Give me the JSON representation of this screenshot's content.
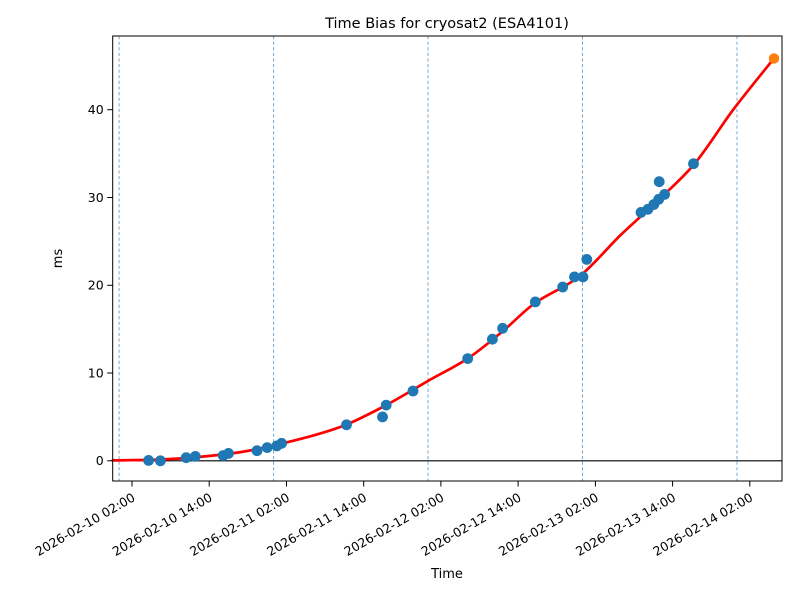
{
  "chart_data": {
    "type": "scatter",
    "title": "Time Bias for cryosat2 (ESA4101)",
    "xlabel": "Time",
    "ylabel": "ms",
    "x_range": [
      "2026-02-09 23:00",
      "2026-02-14 07:00"
    ],
    "y_range": [
      -2.3,
      48.4
    ],
    "y_ticks": [
      0,
      10,
      20,
      30,
      40
    ],
    "x_tick_labels": [
      "2026-02-10 02:00",
      "2026-02-10 14:00",
      "2026-02-11 02:00",
      "2026-02-11 14:00",
      "2026-02-12 02:00",
      "2026-02-12 14:00",
      "2026-02-13 02:00",
      "2026-02-13 14:00",
      "2026-02-14 02:00"
    ],
    "day_gridlines": [
      "2026-02-10 00:00",
      "2026-02-11 00:00",
      "2026-02-12 00:00",
      "2026-02-13 00:00",
      "2026-02-14 00:00"
    ],
    "zero_line": 0,
    "grid": "vertical dashed lines at day boundaries",
    "legend_position": "none",
    "colors": {
      "observations": "#1f77b4",
      "fit_line": "#ff0000",
      "prediction": "#ff7f0e",
      "gridline": "#74a9d1",
      "zero_line": "#000000"
    },
    "series": [
      {
        "name": "fit",
        "type": "line",
        "color": "#ff0000",
        "stroke_width": 2.7,
        "points": [
          {
            "time": "2026-02-09 23:00",
            "ms": 0.05
          },
          {
            "time": "2026-02-10 06:30",
            "ms": 0.15
          },
          {
            "time": "2026-02-10 12:30",
            "ms": 0.45
          },
          {
            "time": "2026-02-10 19:00",
            "ms": 1.0
          },
          {
            "time": "2026-02-11 00:00",
            "ms": 1.75
          },
          {
            "time": "2026-02-11 06:00",
            "ms": 2.85
          },
          {
            "time": "2026-02-11 11:15",
            "ms": 4.1
          },
          {
            "time": "2026-02-11 17:30",
            "ms": 6.35
          },
          {
            "time": "2026-02-12 00:00",
            "ms": 9.1
          },
          {
            "time": "2026-02-12 06:15",
            "ms": 11.7
          },
          {
            "time": "2026-02-12 11:40",
            "ms": 14.8
          },
          {
            "time": "2026-02-12 16:40",
            "ms": 18.0
          },
          {
            "time": "2026-02-12 23:30",
            "ms": 21.0
          },
          {
            "time": "2026-02-13 05:45",
            "ms": 25.6
          },
          {
            "time": "2026-02-13 10:35",
            "ms": 28.9
          },
          {
            "time": "2026-02-13 17:15",
            "ms": 33.7
          },
          {
            "time": "2026-02-13 23:25",
            "ms": 40.0
          },
          {
            "time": "2026-02-14 05:45",
            "ms": 45.85
          }
        ]
      },
      {
        "name": "observations",
        "type": "scatter",
        "color": "#1f77b4",
        "marker_radius": 5.4,
        "points": [
          {
            "time": "2026-02-10 04:35",
            "ms": 0.05
          },
          {
            "time": "2026-02-10 06:25",
            "ms": 0.0
          },
          {
            "time": "2026-02-10 10:25",
            "ms": 0.35
          },
          {
            "time": "2026-02-10 11:50",
            "ms": 0.5
          },
          {
            "time": "2026-02-10 16:10",
            "ms": 0.6
          },
          {
            "time": "2026-02-10 17:00",
            "ms": 0.85
          },
          {
            "time": "2026-02-10 21:25",
            "ms": 1.15
          },
          {
            "time": "2026-02-10 23:00",
            "ms": 1.5
          },
          {
            "time": "2026-02-11 00:30",
            "ms": 1.7
          },
          {
            "time": "2026-02-11 01:15",
            "ms": 2.0
          },
          {
            "time": "2026-02-11 11:20",
            "ms": 4.1
          },
          {
            "time": "2026-02-11 16:55",
            "ms": 5.0
          },
          {
            "time": "2026-02-11 17:30",
            "ms": 6.35
          },
          {
            "time": "2026-02-11 21:40",
            "ms": 7.95
          },
          {
            "time": "2026-02-12 06:10",
            "ms": 11.65
          },
          {
            "time": "2026-02-12 10:00",
            "ms": 13.85
          },
          {
            "time": "2026-02-12 11:35",
            "ms": 15.1
          },
          {
            "time": "2026-02-12 16:40",
            "ms": 18.1
          },
          {
            "time": "2026-02-12 20:55",
            "ms": 19.8
          },
          {
            "time": "2026-02-12 22:45",
            "ms": 20.95
          },
          {
            "time": "2026-02-13 00:05",
            "ms": 20.95
          },
          {
            "time": "2026-02-13 00:40",
            "ms": 22.95
          },
          {
            "time": "2026-02-13 09:05",
            "ms": 28.3
          },
          {
            "time": "2026-02-13 10:10",
            "ms": 28.65
          },
          {
            "time": "2026-02-13 11:05",
            "ms": 29.2
          },
          {
            "time": "2026-02-13 11:50",
            "ms": 29.8
          },
          {
            "time": "2026-02-13 11:55",
            "ms": 31.8
          },
          {
            "time": "2026-02-13 12:45",
            "ms": 30.35
          },
          {
            "time": "2026-02-13 17:15",
            "ms": 33.85
          }
        ]
      },
      {
        "name": "prediction",
        "type": "scatter",
        "color": "#ff7f0e",
        "marker_radius": 5.2,
        "points": [
          {
            "time": "2026-02-14 05:45",
            "ms": 45.85
          }
        ]
      }
    ]
  }
}
